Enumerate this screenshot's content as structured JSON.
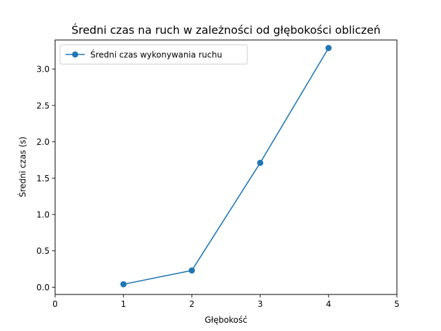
{
  "chart_data": {
    "type": "line",
    "title": "Średni czas na ruch w zależności od głębokości obliczeń",
    "xlabel": "Głębokość",
    "ylabel": "Średni czas (s)",
    "xlim": [
      0,
      5
    ],
    "ylim": [
      -0.1,
      3.4
    ],
    "x_ticks": [
      0,
      1,
      2,
      3,
      4,
      5
    ],
    "y_ticks": [
      0.0,
      0.5,
      1.0,
      1.5,
      2.0,
      2.5,
      3.0
    ],
    "y_tick_labels": [
      "0.0",
      "0.5",
      "1.0",
      "1.5",
      "2.0",
      "2.5",
      "3.0"
    ],
    "grid": false,
    "legend_position": "top-left",
    "series": [
      {
        "name": "Średni czas wykonywania ruchu",
        "color": "#1f77b4",
        "marker": "circle",
        "x": [
          1,
          2,
          3,
          4
        ],
        "y": [
          0.04,
          0.23,
          1.71,
          3.29
        ]
      }
    ]
  }
}
